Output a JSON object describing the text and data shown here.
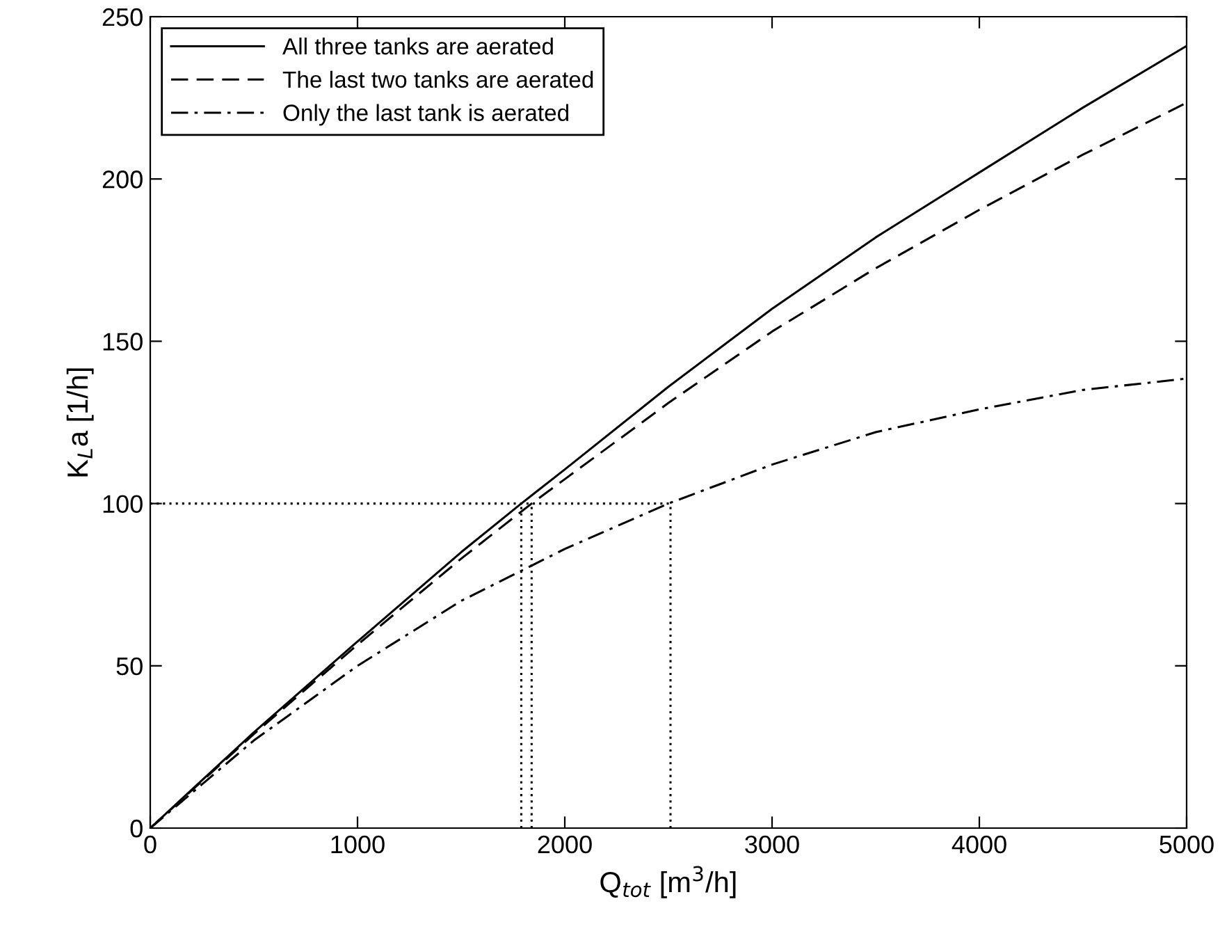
{
  "chart_data": {
    "type": "line",
    "xlabel": "Q$_{tot}$ [m$^{3}$/h]",
    "ylabel": "K$_{L}$a [1/h]",
    "xlim": [
      0,
      5000
    ],
    "ylim": [
      0,
      250
    ],
    "xticks": [
      0,
      1000,
      2000,
      3000,
      4000,
      5000
    ],
    "yticks": [
      0,
      50,
      100,
      150,
      200,
      250
    ],
    "grid": false,
    "legend": "top left",
    "marker": "none",
    "series": [
      {
        "name": "All three tanks are aerated",
        "color": "#000000",
        "line_style": "solid",
        "x": [
          0,
          500,
          1000,
          1500,
          1790,
          2000,
          2500,
          3000,
          3500,
          4000,
          4500,
          5000
        ],
        "values": [
          0,
          29.5,
          57.5,
          85,
          100,
          110.5,
          136,
          160,
          182,
          202,
          222,
          241
        ]
      },
      {
        "name": "The last two tanks are aerated",
        "color": "#000000",
        "line_style": "dashed",
        "x": [
          0,
          500,
          1000,
          1500,
          1840,
          2000,
          2500,
          3000,
          3500,
          4000,
          4500,
          5000
        ],
        "values": [
          0,
          29,
          56.5,
          83,
          100,
          107.5,
          131,
          153,
          172.5,
          190.5,
          207.5,
          223.5
        ]
      },
      {
        "name": "Only the last tank is aerated",
        "color": "#000000",
        "line_style": "dashdot",
        "x": [
          0,
          500,
          1000,
          1500,
          2000,
          2500,
          3000,
          3500,
          4000,
          4500,
          5000
        ],
        "values": [
          0,
          27,
          50,
          70,
          86,
          100,
          112,
          122,
          129,
          135,
          138.5
        ]
      },
      {
        "color": "#000000",
        "line_style": "dotted",
        "x": [
          0,
          2510
        ],
        "values": [
          100,
          100
        ]
      },
      {
        "color": "#000000",
        "line_style": "dotted",
        "x": [
          1790,
          1790
        ],
        "values": [
          0,
          100
        ]
      },
      {
        "color": "#000000",
        "line_style": "dotted",
        "x": [
          1840,
          1840
        ],
        "values": [
          0,
          100
        ]
      },
      {
        "color": "#000000",
        "line_style": "dotted",
        "x": [
          2510,
          2510
        ],
        "values": [
          0,
          100
        ]
      }
    ]
  }
}
